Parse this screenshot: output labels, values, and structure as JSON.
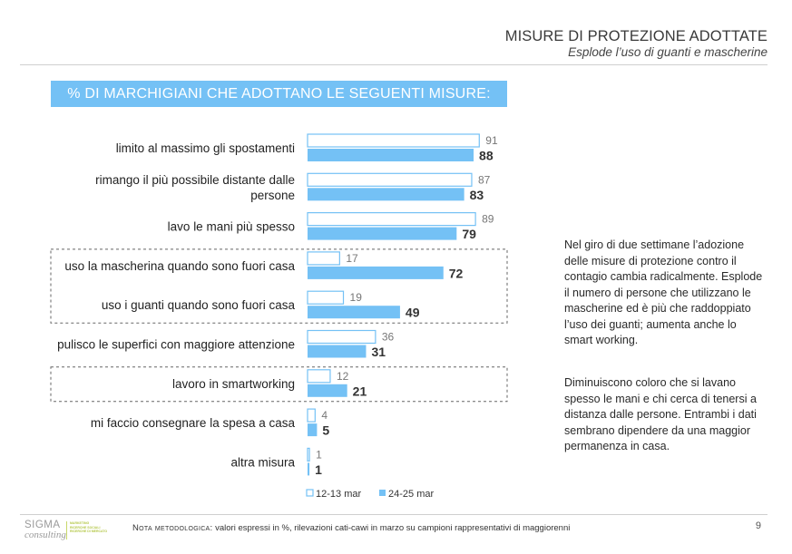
{
  "header": {
    "title": "MISURE DI PROTEZIONE ADOTTATE",
    "subtitle": "Esplode l’uso di guanti e mascherine"
  },
  "banner": "% DI MARCHIGIANI CHE ADOTTANO LE SEGUENTI MISURE:",
  "colors": {
    "accent": "#74c1f5",
    "bar_outline": "#74c1f5",
    "bar_fill_2": "#74c1f5",
    "dashed": "#666666"
  },
  "chart_data": {
    "type": "bar",
    "orientation": "horizontal",
    "categories": [
      [
        "limito al massimo gli spostamenti"
      ],
      [
        "rimango il più possibile distante dalle",
        "persone"
      ],
      [
        "lavo le mani più spesso"
      ],
      [
        "uso la mascherina quando sono fuori casa"
      ],
      [
        "uso i guanti quando sono fuori casa"
      ],
      [
        "pulisco le superfici con maggiore attenzione"
      ],
      [
        "lavoro in smartworking"
      ],
      [
        "mi faccio consegnare la spesa a casa"
      ],
      [
        "altra misura"
      ]
    ],
    "series": [
      {
        "name": "12-13 mar",
        "style": "outline",
        "values": [
          91,
          87,
          89,
          17,
          19,
          36,
          12,
          4,
          1
        ]
      },
      {
        "name": "24-25 mar",
        "style": "filled",
        "values": [
          88,
          83,
          79,
          72,
          49,
          31,
          21,
          5,
          1
        ]
      }
    ],
    "highlighted_groups": [
      [
        3,
        4
      ],
      [
        6
      ]
    ],
    "legend_position": "bottom",
    "xlim": [
      0,
      100
    ],
    "grid": false
  },
  "side_text": {
    "p1": "Nel giro di due settimane l’adozione delle misure di protezione contro il contagio cambia radicalmente. Esplode il numero di persone che utilizzano le mascherine ed è più che raddoppiato l’uso dei guanti; aumenta anche lo smart working.",
    "p2": "Diminuiscono coloro che si lavano spesso le mani e chi cerca di tenersi a distanza dalle persone. Entrambi i dati sembrano dipendere da una maggior permanenza in casa."
  },
  "footer": {
    "logo_top": "SIGMA",
    "logo_bottom": "consulting",
    "logo_tagline": [
      "MARKETING",
      "RICERCHE SOCIALI",
      "RICERCHE DI MERCATO"
    ],
    "note_label": "Nota metodologica:",
    "note_text": " valori espressi in %, rilevazioni cati-cawi in marzo su campioni rappresentativi di maggiorenni",
    "page_number": "9"
  }
}
